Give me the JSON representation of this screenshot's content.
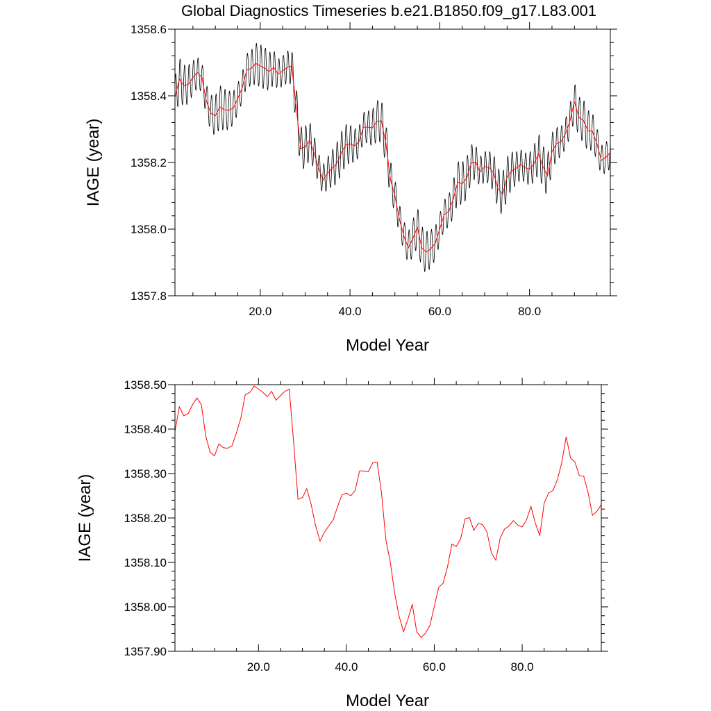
{
  "figure": {
    "title": "Global Diagnostics Timeseries b.e21.B1850.f09_g17.L83.001"
  },
  "chart_data": [
    {
      "type": "line",
      "xlabel": "Model Year",
      "ylabel": "IAGE (year)",
      "xlim": [
        1,
        98
      ],
      "ylim": [
        1357.8,
        1358.6
      ],
      "xticks": [
        20,
        40,
        60,
        80
      ],
      "xtick_labels": [
        "20.0",
        "40.0",
        "60.0",
        "80.0"
      ],
      "yticks": [
        1357.8,
        1358.0,
        1358.2,
        1358.4,
        1358.6
      ],
      "ytick_labels": [
        "1357.8",
        "1358.0",
        "1358.2",
        "1358.4",
        "1358.6"
      ],
      "grid": false,
      "series": [
        {
          "color": "#000000",
          "kind": "monthly",
          "amplitude": 0.065
        },
        {
          "color": "#ff0000",
          "kind": "annual"
        }
      ]
    },
    {
      "type": "line",
      "xlabel": "Model Year",
      "ylabel": "IAGE (year)",
      "xlim": [
        1,
        98
      ],
      "ylim": [
        1357.9,
        1358.5
      ],
      "xticks": [
        20,
        40,
        60,
        80
      ],
      "xtick_labels": [
        "20.0",
        "40.0",
        "60.0",
        "80.0"
      ],
      "yticks": [
        1357.9,
        1358.0,
        1358.1,
        1358.2,
        1358.3,
        1358.4,
        1358.5
      ],
      "ytick_labels": [
        "1357.90",
        "1358.00",
        "1358.10",
        "1358.20",
        "1358.30",
        "1358.40",
        "1358.50"
      ],
      "grid": false,
      "series": [
        {
          "color": "#ff0000",
          "kind": "annual"
        }
      ]
    }
  ],
  "annual": {
    "x": [
      1,
      2,
      3,
      4,
      5,
      6,
      7,
      8,
      9,
      10,
      11,
      12,
      13,
      14,
      15,
      16,
      17,
      18,
      19,
      20,
      21,
      22,
      23,
      24,
      25,
      26,
      27,
      28,
      29,
      30,
      31,
      32,
      33,
      34,
      35,
      36,
      37,
      38,
      39,
      40,
      41,
      42,
      43,
      44,
      45,
      46,
      47,
      48,
      49,
      50,
      51,
      52,
      53,
      54,
      55,
      56,
      57,
      58,
      59,
      60,
      61,
      62,
      63,
      64,
      65,
      66,
      67,
      68,
      69,
      70,
      71,
      72,
      73,
      74,
      75,
      76,
      77,
      78,
      79,
      80,
      81,
      82,
      83,
      84,
      85,
      86,
      87,
      88,
      89,
      90,
      91,
      92,
      93,
      94,
      95,
      96,
      97,
      98
    ],
    "y": [
      1358.395,
      1358.45,
      1358.43,
      1358.435,
      1358.455,
      1358.47,
      1358.455,
      1358.385,
      1358.348,
      1358.34,
      1358.367,
      1358.358,
      1358.357,
      1358.363,
      1358.392,
      1358.425,
      1358.478,
      1358.482,
      1358.497,
      1358.49,
      1358.483,
      1358.473,
      1358.485,
      1358.465,
      1358.475,
      1358.485,
      1358.49,
      1358.37,
      1358.242,
      1358.246,
      1358.266,
      1358.23,
      1358.182,
      1358.148,
      1358.168,
      1358.182,
      1358.196,
      1358.226,
      1358.252,
      1358.256,
      1358.25,
      1358.262,
      1358.306,
      1358.306,
      1358.304,
      1358.324,
      1358.325,
      1358.256,
      1358.15,
      1358.1,
      1358.03,
      1357.979,
      1357.944,
      1357.972,
      1358.006,
      1357.944,
      1357.931,
      1357.941,
      1357.958,
      1358.001,
      1358.044,
      1358.053,
      1358.09,
      1358.141,
      1358.136,
      1358.153,
      1358.198,
      1358.201,
      1358.172,
      1358.188,
      1358.185,
      1358.168,
      1358.121,
      1358.105,
      1358.155,
      1358.175,
      1358.182,
      1358.194,
      1358.184,
      1358.18,
      1358.196,
      1358.226,
      1358.188,
      1358.16,
      1358.233,
      1358.256,
      1358.262,
      1358.286,
      1358.324,
      1358.383,
      1358.335,
      1358.326,
      1358.295,
      1358.294,
      1358.257,
      1358.206,
      1358.215,
      1358.23
    ]
  }
}
